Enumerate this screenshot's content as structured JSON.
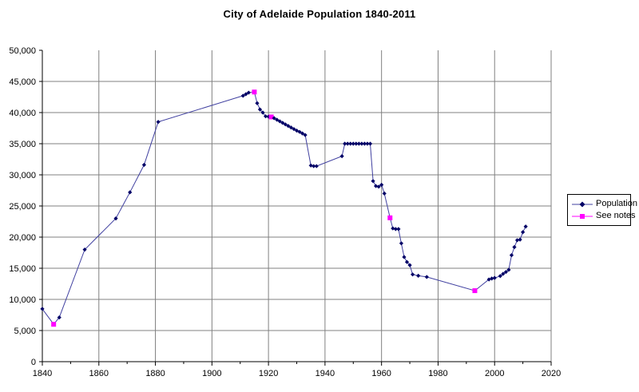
{
  "chart_data": {
    "type": "line",
    "title": "City of Adelaide Population 1840-2011",
    "xlabel": "",
    "ylabel": "",
    "xlim": [
      1840,
      2020
    ],
    "ylim": [
      0,
      50000
    ],
    "grid": true,
    "legend_position": "right-outside",
    "x_ticks": [
      1840,
      1860,
      1880,
      1900,
      1920,
      1940,
      1960,
      1980,
      2000,
      2020
    ],
    "x_tick_labels": [
      "1840",
      "1860",
      "1880",
      "1900",
      "1920",
      "1940",
      "1960",
      "1980",
      "2000",
      "2020"
    ],
    "x_minor_ticks": [
      1850,
      1870,
      1890,
      1910,
      1930,
      1950,
      1970,
      1990,
      2010
    ],
    "y_ticks": [
      0,
      5000,
      10000,
      15000,
      20000,
      25000,
      30000,
      35000,
      40000,
      45000,
      50000
    ],
    "y_tick_labels": [
      "0",
      "5,000",
      "10,000",
      "15,000",
      "20,000",
      "25,000",
      "30,000",
      "35,000",
      "40,000",
      "45,000",
      "50,000"
    ],
    "series": [
      {
        "name": "Population",
        "marker": "diamond",
        "line_color": "#4040A0",
        "marker_color": "#000066"
      },
      {
        "name": "See notes",
        "marker": "square",
        "line_color": "#FF00FF",
        "marker_color": "#FF00FF"
      }
    ],
    "columns": [
      "year",
      "population",
      "see_note"
    ],
    "points": [
      [
        1840,
        8480,
        0
      ],
      [
        1844,
        6000,
        1
      ],
      [
        1846,
        7100,
        0
      ],
      [
        1855,
        18000,
        0
      ],
      [
        1866,
        23000,
        0
      ],
      [
        1871,
        27200,
        0
      ],
      [
        1876,
        31600,
        0
      ],
      [
        1881,
        38500,
        0
      ],
      [
        1911,
        42700,
        0
      ],
      [
        1912,
        42950,
        0
      ],
      [
        1913,
        43200,
        0
      ],
      [
        1915,
        43300,
        1
      ],
      [
        1916,
        41500,
        0
      ],
      [
        1917,
        40500,
        0
      ],
      [
        1918,
        40000,
        0
      ],
      [
        1919,
        39400,
        0
      ],
      [
        1920,
        39350,
        0
      ],
      [
        1921,
        39300,
        1
      ],
      [
        1922,
        39100,
        0
      ],
      [
        1923,
        38850,
        0
      ],
      [
        1924,
        38600,
        0
      ],
      [
        1925,
        38350,
        0
      ],
      [
        1926,
        38100,
        0
      ],
      [
        1927,
        37850,
        0
      ],
      [
        1928,
        37600,
        0
      ],
      [
        1929,
        37350,
        0
      ],
      [
        1930,
        37100,
        0
      ],
      [
        1931,
        36900,
        0
      ],
      [
        1932,
        36650,
        0
      ],
      [
        1933,
        36400,
        0
      ],
      [
        1935,
        31500,
        0
      ],
      [
        1936,
        31400,
        0
      ],
      [
        1937,
        31400,
        0
      ],
      [
        1946,
        33000,
        0
      ],
      [
        1947,
        35000,
        0
      ],
      [
        1948,
        35000,
        0
      ],
      [
        1949,
        35000,
        0
      ],
      [
        1950,
        35000,
        0
      ],
      [
        1951,
        35000,
        0
      ],
      [
        1952,
        35000,
        0
      ],
      [
        1953,
        35000,
        0
      ],
      [
        1954,
        35000,
        0
      ],
      [
        1955,
        35000,
        0
      ],
      [
        1956,
        35000,
        0
      ],
      [
        1957,
        29000,
        0
      ],
      [
        1958,
        28200,
        0
      ],
      [
        1959,
        28100,
        0
      ],
      [
        1960,
        28400,
        0
      ],
      [
        1961,
        27000,
        0
      ],
      [
        1963,
        23100,
        1
      ],
      [
        1964,
        21400,
        0
      ],
      [
        1965,
        21300,
        0
      ],
      [
        1966,
        21300,
        0
      ],
      [
        1967,
        19000,
        0
      ],
      [
        1968,
        16800,
        0
      ],
      [
        1969,
        16000,
        0
      ],
      [
        1970,
        15500,
        0
      ],
      [
        1971,
        14000,
        0
      ],
      [
        1973,
        13800,
        0
      ],
      [
        1976,
        13600,
        0
      ],
      [
        1993,
        11400,
        1
      ],
      [
        1998,
        13200,
        0
      ],
      [
        1999,
        13350,
        0
      ],
      [
        2000,
        13450,
        0
      ],
      [
        2002,
        13750,
        0
      ],
      [
        2003,
        14100,
        0
      ],
      [
        2004,
        14400,
        0
      ],
      [
        2005,
        14750,
        0
      ],
      [
        2006,
        17100,
        0
      ],
      [
        2007,
        18400,
        0
      ],
      [
        2008,
        19500,
        0
      ],
      [
        2009,
        19600,
        0
      ],
      [
        2010,
        20800,
        0
      ],
      [
        2011,
        21700,
        0
      ]
    ]
  },
  "colors": {
    "background": "#FFFFFF",
    "gridline": "#808080",
    "axis": "#000000",
    "text": "#000000"
  }
}
